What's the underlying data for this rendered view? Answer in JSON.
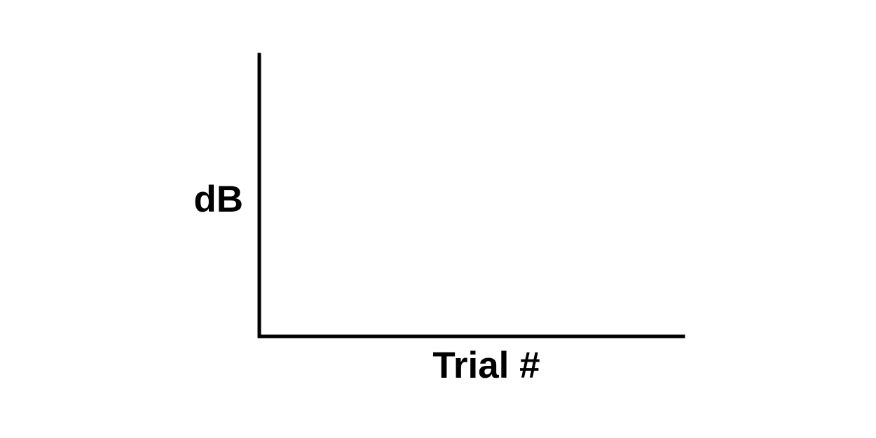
{
  "chart_data": {
    "type": "line",
    "title": "",
    "xlabel": "Trial #",
    "ylabel": "dB",
    "series": [],
    "grid": false,
    "legend": "none",
    "axis_color": "#000000"
  }
}
